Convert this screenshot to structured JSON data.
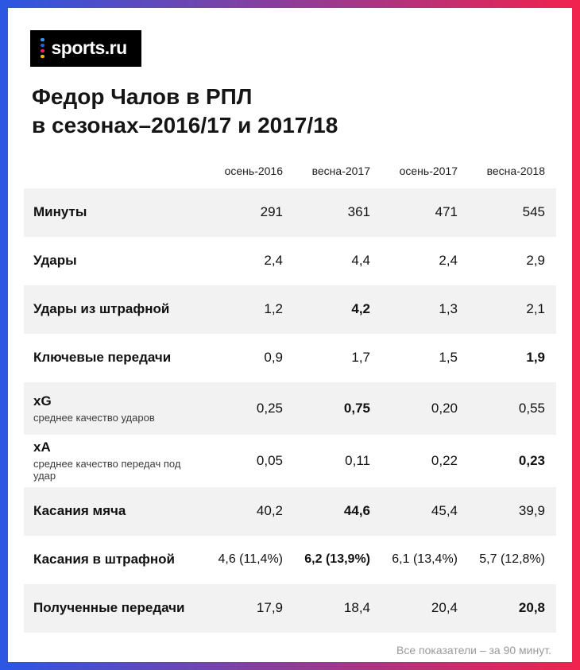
{
  "frame": {
    "gradient_left_color": "#2b57e3",
    "gradient_right_color": "#f2224d"
  },
  "logo": {
    "label": "sports.ru",
    "dot_colors": [
      "#2f9bff",
      "#2d5be3",
      "#f2224d",
      "#ffb300"
    ]
  },
  "title": {
    "line1": "Федор Чалов в РПЛ",
    "line2": "в сезонах–2016/17 и 2017/18"
  },
  "chart_data": {
    "type": "table",
    "title": "Федор Чалов в РПЛ в сезонах–2016/17 и 2017/18",
    "columns": [
      "осень-2016",
      "весна-2017",
      "осень-2017",
      "весна-2018"
    ],
    "rows": [
      {
        "label": "Минуты",
        "sub": "",
        "values": [
          "291",
          "361",
          "471",
          "545"
        ],
        "bold": []
      },
      {
        "label": "Удары",
        "sub": "",
        "values": [
          "2,4",
          "4,4",
          "2,4",
          "2,9"
        ],
        "bold": []
      },
      {
        "label": "Удары из штрафной",
        "sub": "",
        "values": [
          "1,2",
          "4,2",
          "1,3",
          "2,1"
        ],
        "bold": [
          1
        ]
      },
      {
        "label": "Ключевые передачи",
        "sub": "",
        "values": [
          "0,9",
          "1,7",
          "1,5",
          "1,9"
        ],
        "bold": [
          3
        ]
      },
      {
        "label": "xG",
        "sub": "среднее качество ударов",
        "values": [
          "0,25",
          "0,75",
          "0,20",
          "0,55"
        ],
        "bold": [
          1
        ]
      },
      {
        "label": "xA",
        "sub": "среднее качество передач под удар",
        "values": [
          "0,05",
          "0,11",
          "0,22",
          "0,23"
        ],
        "bold": [
          3
        ]
      },
      {
        "label": "Касания мяча",
        "sub": "",
        "values": [
          "40,2",
          "44,6",
          "45,4",
          "39,9"
        ],
        "bold": [
          1
        ]
      },
      {
        "label": "Касания в штрафной",
        "sub": "",
        "values": [
          "4,6 (11,4%)",
          "6,2 (13,9%)",
          "6,1 (13,4%)",
          "5,7 (12,8%)"
        ],
        "bold": [
          1
        ]
      },
      {
        "label": "Полученные передачи",
        "sub": "",
        "values": [
          "17,9",
          "18,4",
          "20,4",
          "20,8"
        ],
        "bold": [
          3
        ]
      }
    ],
    "footnote": "Все показатели – за 90 минут."
  }
}
